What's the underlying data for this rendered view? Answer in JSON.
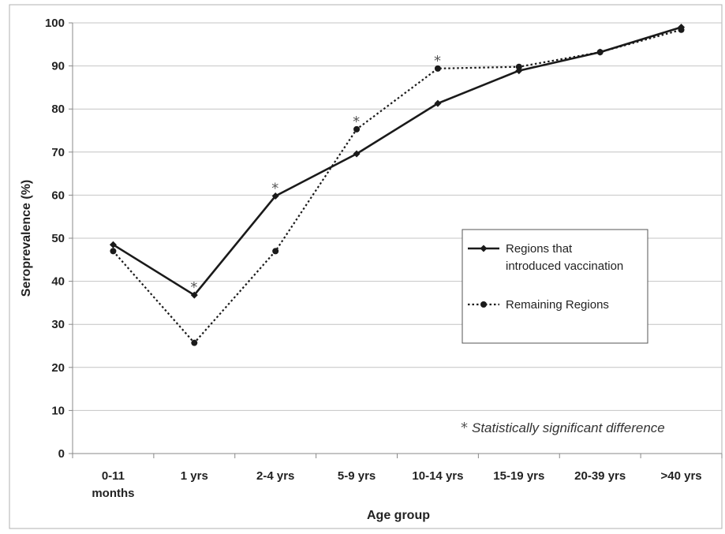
{
  "chart_data": {
    "type": "line",
    "title": "",
    "xlabel": "Age group",
    "ylabel": "Seroprevalence (%)",
    "ylim": [
      0,
      100
    ],
    "yticks": [
      0,
      10,
      20,
      30,
      40,
      50,
      60,
      70,
      80,
      90,
      100
    ],
    "categories": [
      "0-11 months",
      "1 yrs",
      "2-4 yrs",
      "5-9 yrs",
      "10-14 yrs",
      "15-19 yrs",
      "20-39 yrs",
      ">40 yrs"
    ],
    "category_lines": [
      [
        "0-11",
        "months"
      ],
      [
        "1 yrs"
      ],
      [
        "2-4 yrs"
      ],
      [
        "5-9 yrs"
      ],
      [
        "10-14 yrs"
      ],
      [
        "15-19 yrs"
      ],
      [
        "20-39 yrs"
      ],
      [
        ">40 yrs"
      ]
    ],
    "grid": true,
    "legend_position": "right",
    "series": [
      {
        "name_lines": [
          "Regions that",
          "introduced vaccination"
        ],
        "name": "Regions that introduced vaccination",
        "style": "solid",
        "marker": "diamond",
        "color": "#1a1a1a",
        "values": [
          48.5,
          36.8,
          59.8,
          69.6,
          81.3,
          88.9,
          93.2,
          99.0
        ]
      },
      {
        "name_lines": [
          "Remaining Regions"
        ],
        "name": "Remaining Regions",
        "style": "dotted",
        "marker": "circle",
        "color": "#1a1a1a",
        "values": [
          47.0,
          25.7,
          47.0,
          75.3,
          89.4,
          89.8,
          93.2,
          98.4
        ]
      }
    ],
    "significant_categories": [
      "1 yrs",
      "2-4 yrs",
      "5-9 yrs",
      "10-14 yrs"
    ],
    "annotation": {
      "symbol": "*",
      "text": "Statistically significant difference"
    }
  }
}
